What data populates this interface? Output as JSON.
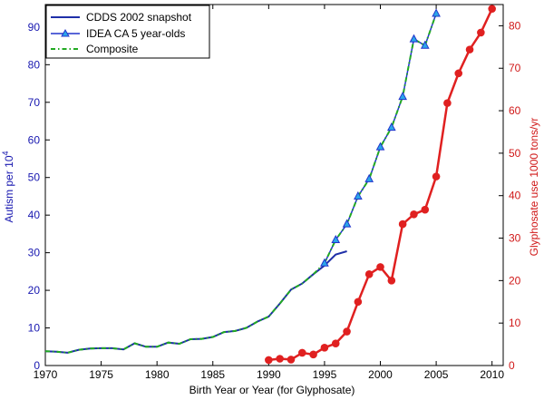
{
  "chart_data": {
    "type": "line",
    "xlabel": "Birth Year or Year (for Glyphosate)",
    "ylabel_left": "Autism per 10",
    "ylabel_left_superscript": "4",
    "ylabel_right": "Glyphosate use 1000 tons/yr",
    "xlim": [
      1970,
      2011
    ],
    "ylim_left": [
      0,
      96
    ],
    "ylim_right": [
      0,
      85
    ],
    "x_ticks": [
      1970,
      1975,
      1980,
      1985,
      1990,
      1995,
      2000,
      2005,
      2010
    ],
    "y_left_ticks": [
      0,
      10,
      20,
      30,
      40,
      50,
      60,
      70,
      80,
      90
    ],
    "y_right_ticks": [
      0,
      10,
      20,
      30,
      40,
      50,
      60,
      70,
      80
    ],
    "colors": {
      "cdds": "#1f2fa8",
      "idea": "#2233cc",
      "composite": "#22aa22",
      "glyphosate": "#e02020",
      "left_axis": "#1818b0",
      "right_axis": "#d01818"
    },
    "legend": {
      "position": "top-left",
      "entries": [
        {
          "key": "cdds",
          "label": "CDDS 2002 snapshot"
        },
        {
          "key": "idea",
          "label": "IDEA CA 5 year-olds"
        },
        {
          "key": "composite",
          "label": "Composite"
        }
      ]
    },
    "series": [
      {
        "name": "CDDS 2002 snapshot",
        "key": "cdds",
        "axis": "left",
        "x": [
          1970,
          1971,
          1972,
          1973,
          1974,
          1975,
          1976,
          1977,
          1978,
          1979,
          1980,
          1981,
          1982,
          1983,
          1984,
          1985,
          1986,
          1987,
          1988,
          1989,
          1990,
          1991,
          1992,
          1993,
          1994,
          1995,
          1996,
          1997
        ],
        "values": [
          3.8,
          3.7,
          3.4,
          4.2,
          4.5,
          4.6,
          4.6,
          4.3,
          5.9,
          5.0,
          5.0,
          6.1,
          5.8,
          7.0,
          7.1,
          7.6,
          8.9,
          9.2,
          10.0,
          11.7,
          13.0,
          16.5,
          20.2,
          21.8,
          24.3,
          26.6,
          29.5,
          30.4
        ]
      },
      {
        "name": "IDEA CA 5 year-olds",
        "key": "idea",
        "axis": "left",
        "x": [
          1995,
          1996,
          1997,
          1998,
          1999,
          2000,
          2001,
          2002,
          2003,
          2004,
          2005
        ],
        "values": [
          27.2,
          33.4,
          37.6,
          45.0,
          49.6,
          58.1,
          63.3,
          71.5,
          86.8,
          85.1,
          93.6
        ]
      },
      {
        "name": "Composite",
        "key": "composite",
        "axis": "left",
        "x": [
          1970,
          1971,
          1972,
          1973,
          1974,
          1975,
          1976,
          1977,
          1978,
          1979,
          1980,
          1981,
          1982,
          1983,
          1984,
          1985,
          1986,
          1987,
          1988,
          1989,
          1990,
          1991,
          1992,
          1993,
          1994,
          1995,
          1996,
          1997,
          1998,
          1999,
          2000,
          2001,
          2002,
          2003,
          2004,
          2005
        ],
        "values": [
          3.8,
          3.7,
          3.4,
          4.2,
          4.5,
          4.6,
          4.6,
          4.3,
          5.9,
          5.0,
          5.0,
          6.1,
          5.8,
          7.0,
          7.1,
          7.6,
          8.9,
          9.2,
          10.0,
          11.7,
          13.0,
          16.5,
          20.2,
          21.8,
          24.3,
          27.2,
          33.4,
          37.6,
          45.0,
          49.6,
          58.1,
          63.3,
          71.5,
          86.8,
          85.1,
          93.6
        ]
      },
      {
        "name": "Glyphosate",
        "key": "glyphosate",
        "axis": "right",
        "x": [
          1990,
          1991,
          1992,
          1993,
          1994,
          1995,
          1996,
          1997,
          1998,
          1999,
          2000,
          2001,
          2002,
          2003,
          2004,
          2005,
          2006,
          2007,
          2008,
          2009,
          2010
        ],
        "values": [
          1.3,
          1.6,
          1.4,
          3.0,
          2.6,
          4.2,
          5.2,
          8.0,
          15.0,
          21.5,
          23.2,
          20.0,
          33.3,
          35.6,
          36.7,
          44.5,
          61.8,
          68.8,
          74.4,
          78.4,
          84.0
        ]
      }
    ]
  }
}
